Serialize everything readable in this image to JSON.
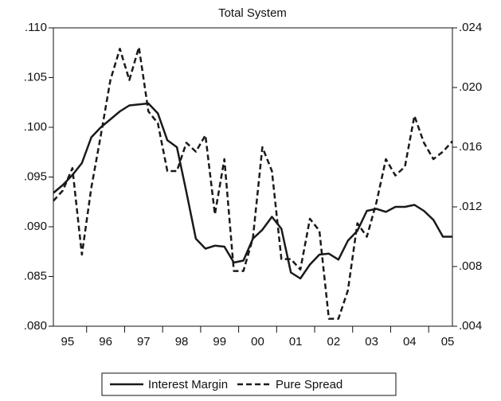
{
  "chart_data": {
    "type": "line",
    "title": "Total System",
    "categories": [
      null,
      "95",
      null,
      null,
      null,
      "96",
      null,
      null,
      null,
      "97",
      null,
      null,
      null,
      "98",
      null,
      null,
      null,
      "99",
      null,
      null,
      null,
      "00",
      null,
      null,
      null,
      "01",
      null,
      null,
      null,
      "02",
      null,
      null,
      null,
      "03",
      null,
      null,
      null,
      "04",
      null,
      null,
      null,
      "05",
      null
    ],
    "series": [
      {
        "name": "Interest Margin",
        "color": "#1a1a1a",
        "dash": false,
        "values": [
          0.0934,
          0.0942,
          0.0952,
          0.0964,
          0.099,
          0.1,
          0.1008,
          0.1016,
          0.1022,
          0.1023,
          0.1024,
          0.1014,
          0.0987,
          0.098,
          0.0935,
          0.0888,
          0.0878,
          0.0881,
          0.088,
          0.0864,
          0.0866,
          0.0888,
          0.0897,
          0.091,
          0.0898,
          0.0854,
          0.0848,
          0.0862,
          0.0872,
          0.0873,
          0.0867,
          0.0886,
          0.0896,
          0.0916,
          0.0918,
          0.0915,
          0.092,
          0.092,
          0.0922,
          0.0916,
          0.0907,
          0.089,
          0.089
        ]
      },
      {
        "name": "Pure Spread",
        "color": "#1a1a1a",
        "dash": true,
        "axis": "y2",
        "values": [
          0.0124,
          0.0131,
          0.0146,
          0.0088,
          0.0133,
          0.0168,
          0.0205,
          0.0226,
          0.0205,
          0.0227,
          0.0184,
          0.0176,
          0.0144,
          0.0144,
          0.0163,
          0.0157,
          0.0168,
          0.0115,
          0.0152,
          0.0077,
          0.0077,
          0.0099,
          0.016,
          0.0144,
          0.0085,
          0.0085,
          0.0078,
          0.0112,
          0.0104,
          0.0045,
          0.0045,
          0.0064,
          0.0109,
          0.01,
          0.0123,
          0.0152,
          0.0141,
          0.0147,
          0.0181,
          0.0163,
          0.0152,
          0.0157,
          0.0164
        ]
      }
    ],
    "ylim": [
      0.08,
      0.11
    ],
    "yticks": [
      {
        "value": 0.08,
        "label": ".080"
      },
      {
        "value": 0.085,
        "label": ".085"
      },
      {
        "value": 0.09,
        "label": ".090"
      },
      {
        "value": 0.095,
        "label": ".095"
      },
      {
        "value": 0.1,
        "label": ".100"
      },
      {
        "value": 0.105,
        "label": ".105"
      },
      {
        "value": 0.11,
        "label": ".110"
      }
    ],
    "y2lim": [
      0.004,
      0.024
    ],
    "y2ticks": [
      {
        "value": 0.004,
        "label": ".004"
      },
      {
        "value": 0.008,
        "label": ".008"
      },
      {
        "value": 0.012,
        "label": ".012"
      },
      {
        "value": 0.016,
        "label": ".016"
      },
      {
        "value": 0.02,
        "label": ".020"
      },
      {
        "value": 0.024,
        "label": ".024"
      }
    ],
    "legend": "bottom"
  }
}
